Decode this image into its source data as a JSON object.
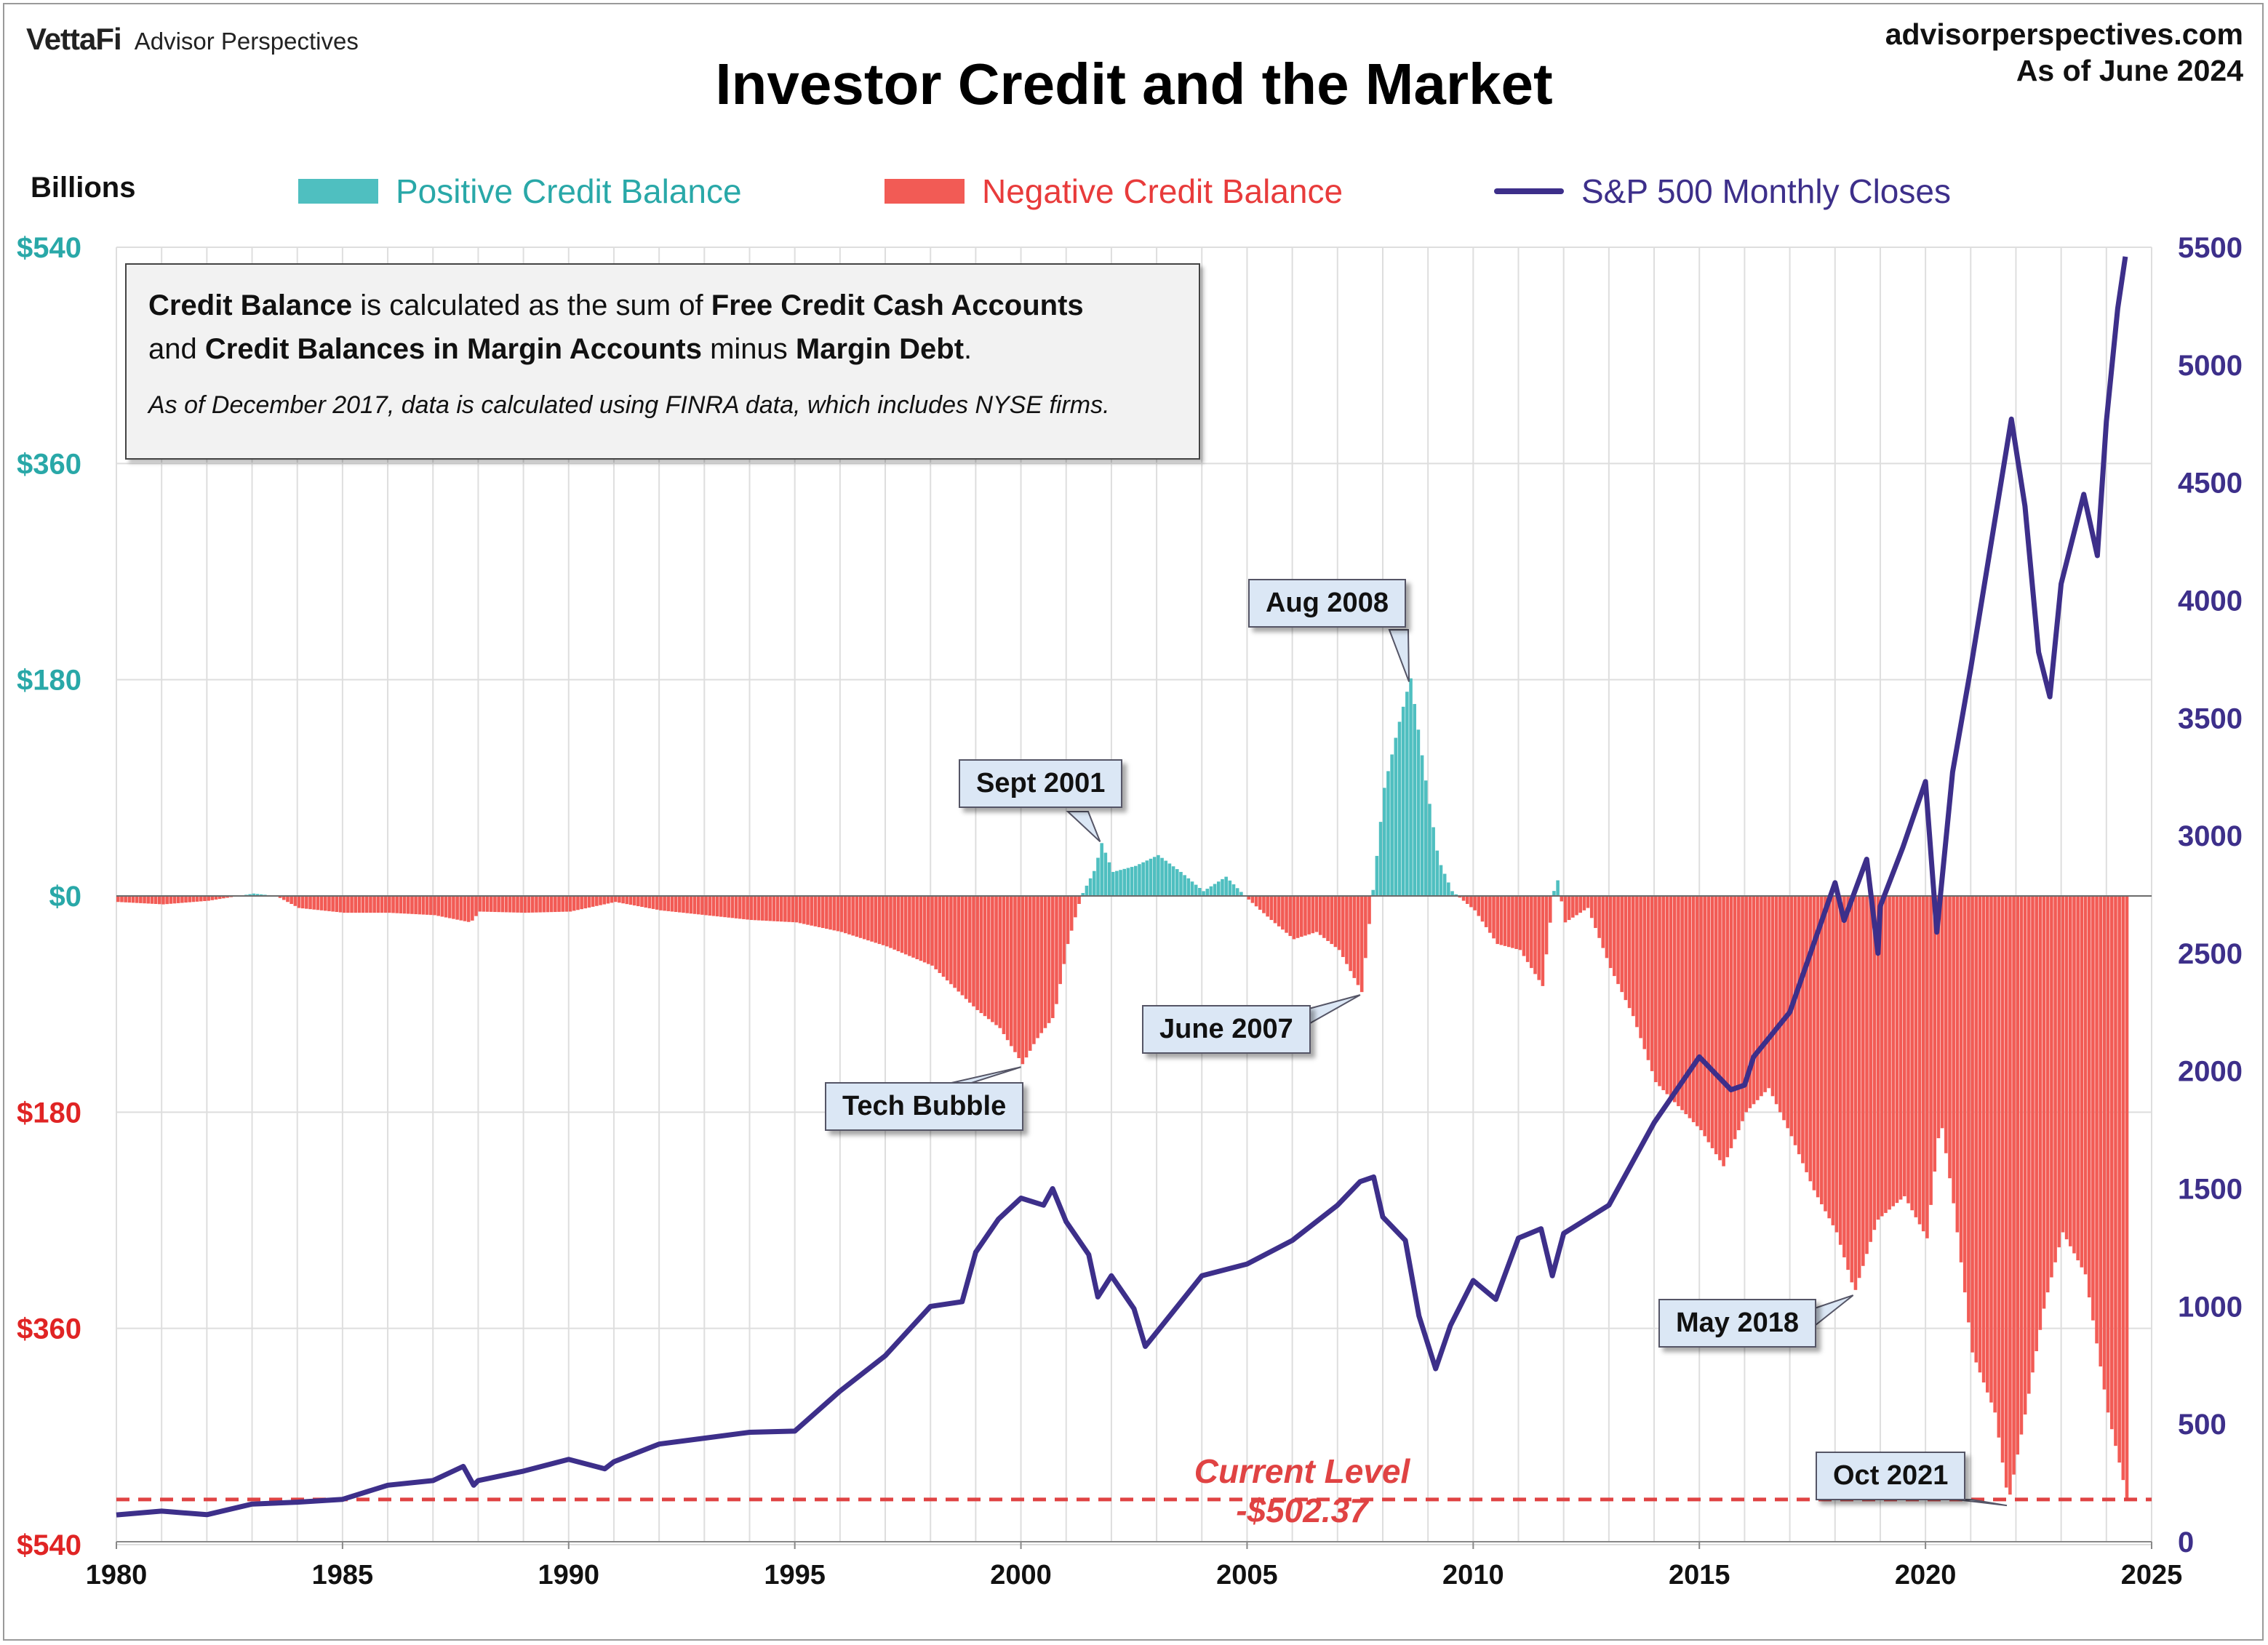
{
  "header": {
    "brand": "VettaFi",
    "brand_sub": "Advisor Perspectives",
    "website": "advisorperspectives.com",
    "as_of": "As of June 2024"
  },
  "chart_data": {
    "type": "bar",
    "title": "Investor Credit and the Market",
    "left_axis_title": "Billions",
    "legend": {
      "positive": "Positive Credit Balance",
      "negative": "Negative Credit Balance",
      "sp500": "S&P 500 Monthly Closes"
    },
    "legend_placement": "top",
    "grid": true,
    "colors": {
      "positive": "#4fbfc0",
      "negative": "#f25b55",
      "sp500": "#3d2f8a",
      "left_axis_positive": "#29a8a8",
      "left_axis_negative": "#e02424",
      "current_line": "#e04343"
    },
    "x_range": [
      1980,
      2025
    ],
    "x_ticks": [
      "1980",
      "1985",
      "1990",
      "1995",
      "2000",
      "2005",
      "2010",
      "2015",
      "2020",
      "2025"
    ],
    "y_left_range": [
      -540,
      540
    ],
    "y_left_ticks": [
      {
        "value": 540,
        "label": "$540"
      },
      {
        "value": 360,
        "label": "$360"
      },
      {
        "value": 180,
        "label": "$180"
      },
      {
        "value": 0,
        "label": "$0"
      },
      {
        "value": -180,
        "label": "$180"
      },
      {
        "value": -360,
        "label": "$360"
      },
      {
        "value": -540,
        "label": "$540"
      }
    ],
    "y_right_range": [
      0,
      5500
    ],
    "y_right_ticks": [
      "0",
      "500",
      "1000",
      "1500",
      "2000",
      "2500",
      "3000",
      "3500",
      "4000",
      "4500",
      "5000",
      "5500"
    ],
    "credit_balance_series": {
      "name": "Credit Balance",
      "points": [
        [
          1980.0,
          -5
        ],
        [
          1981.0,
          -7
        ],
        [
          1982.0,
          -4
        ],
        [
          1983.0,
          2
        ],
        [
          1983.5,
          0
        ],
        [
          1984.0,
          -10
        ],
        [
          1985.0,
          -14
        ],
        [
          1986.0,
          -14
        ],
        [
          1987.0,
          -16
        ],
        [
          1987.8,
          -22
        ],
        [
          1988.0,
          -13
        ],
        [
          1989.0,
          -14
        ],
        [
          1990.0,
          -13
        ],
        [
          1991.0,
          -5
        ],
        [
          1992.0,
          -12
        ],
        [
          1993.0,
          -16
        ],
        [
          1994.0,
          -20
        ],
        [
          1995.0,
          -22
        ],
        [
          1996.0,
          -30
        ],
        [
          1997.0,
          -42
        ],
        [
          1998.0,
          -58
        ],
        [
          1999.0,
          -95
        ],
        [
          1999.5,
          -110
        ],
        [
          2000.0,
          -140
        ],
        [
          2000.3,
          -120
        ],
        [
          2000.7,
          -100
        ],
        [
          2001.0,
          -40
        ],
        [
          2001.3,
          0
        ],
        [
          2001.6,
          22
        ],
        [
          2001.75,
          44
        ],
        [
          2002.0,
          20
        ],
        [
          2002.5,
          25
        ],
        [
          2003.0,
          34
        ],
        [
          2003.5,
          20
        ],
        [
          2004.0,
          4
        ],
        [
          2004.5,
          16
        ],
        [
          2005.0,
          -3
        ],
        [
          2005.5,
          -20
        ],
        [
          2006.0,
          -36
        ],
        [
          2006.5,
          -30
        ],
        [
          2007.0,
          -45
        ],
        [
          2007.5,
          -80
        ],
        [
          2007.75,
          5
        ],
        [
          2008.0,
          90
        ],
        [
          2008.3,
          140
        ],
        [
          2008.58,
          182
        ],
        [
          2008.9,
          100
        ],
        [
          2009.2,
          30
        ],
        [
          2009.5,
          4
        ],
        [
          2010.0,
          -12
        ],
        [
          2010.5,
          -40
        ],
        [
          2011.0,
          -45
        ],
        [
          2011.5,
          -75
        ],
        [
          2011.8,
          20
        ],
        [
          2012.0,
          -22
        ],
        [
          2012.5,
          -10
        ],
        [
          2013.0,
          -60
        ],
        [
          2013.5,
          -100
        ],
        [
          2014.0,
          -155
        ],
        [
          2014.5,
          -175
        ],
        [
          2015.0,
          -195
        ],
        [
          2015.5,
          -225
        ],
        [
          2016.0,
          -180
        ],
        [
          2016.5,
          -160
        ],
        [
          2017.0,
          -200
        ],
        [
          2017.5,
          -245
        ],
        [
          2018.0,
          -280
        ],
        [
          2018.4,
          -330
        ],
        [
          2018.9,
          -270
        ],
        [
          2019.5,
          -250
        ],
        [
          2020.0,
          -285
        ],
        [
          2020.3,
          -185
        ],
        [
          2020.6,
          -260
        ],
        [
          2021.0,
          -380
        ],
        [
          2021.5,
          -430
        ],
        [
          2021.8,
          -505
        ],
        [
          2022.2,
          -425
        ],
        [
          2022.6,
          -340
        ],
        [
          2023.0,
          -280
        ],
        [
          2023.5,
          -315
        ],
        [
          2024.0,
          -430
        ],
        [
          2024.3,
          -480
        ],
        [
          2024.42,
          -502.37
        ]
      ]
    },
    "sp500_series": {
      "name": "S&P 500 Monthly Closes",
      "points": [
        [
          1980,
          114
        ],
        [
          1981,
          130
        ],
        [
          1982,
          115
        ],
        [
          1983,
          160
        ],
        [
          1984,
          168
        ],
        [
          1985,
          180
        ],
        [
          1986,
          240
        ],
        [
          1987,
          260
        ],
        [
          1987.67,
          320
        ],
        [
          1987.9,
          240
        ],
        [
          1988,
          260
        ],
        [
          1989,
          300
        ],
        [
          1990,
          350
        ],
        [
          1990.8,
          310
        ],
        [
          1991,
          340
        ],
        [
          1992,
          415
        ],
        [
          1993,
          440
        ],
        [
          1994,
          465
        ],
        [
          1995,
          470
        ],
        [
          1996,
          640
        ],
        [
          1997,
          790
        ],
        [
          1998,
          1000
        ],
        [
          1998.7,
          1020
        ],
        [
          1999,
          1230
        ],
        [
          1999.5,
          1370
        ],
        [
          2000,
          1460
        ],
        [
          2000.5,
          1430
        ],
        [
          2000.7,
          1500
        ],
        [
          2001,
          1360
        ],
        [
          2001.5,
          1220
        ],
        [
          2001.7,
          1040
        ],
        [
          2002,
          1130
        ],
        [
          2002.5,
          990
        ],
        [
          2002.75,
          830
        ],
        [
          2003,
          890
        ],
        [
          2004,
          1130
        ],
        [
          2005,
          1180
        ],
        [
          2006,
          1280
        ],
        [
          2007,
          1430
        ],
        [
          2007.5,
          1530
        ],
        [
          2007.8,
          1550
        ],
        [
          2008,
          1380
        ],
        [
          2008.5,
          1280
        ],
        [
          2008.8,
          960
        ],
        [
          2009.17,
          735
        ],
        [
          2009.5,
          920
        ],
        [
          2010,
          1110
        ],
        [
          2010.5,
          1030
        ],
        [
          2011,
          1290
        ],
        [
          2011.5,
          1330
        ],
        [
          2011.75,
          1130
        ],
        [
          2012,
          1310
        ],
        [
          2013,
          1430
        ],
        [
          2014,
          1780
        ],
        [
          2015,
          2060
        ],
        [
          2015.7,
          1920
        ],
        [
          2016,
          1940
        ],
        [
          2016.2,
          2060
        ],
        [
          2017,
          2250
        ],
        [
          2018,
          2800
        ],
        [
          2018.2,
          2640
        ],
        [
          2018.7,
          2900
        ],
        [
          2018.95,
          2500
        ],
        [
          2019,
          2700
        ],
        [
          2019.5,
          2950
        ],
        [
          2020,
          3230
        ],
        [
          2020.25,
          2590
        ],
        [
          2020.6,
          3270
        ],
        [
          2021,
          3710
        ],
        [
          2021.5,
          4300
        ],
        [
          2021.9,
          4770
        ],
        [
          2022.2,
          4400
        ],
        [
          2022.5,
          3780
        ],
        [
          2022.75,
          3590
        ],
        [
          2023,
          4070
        ],
        [
          2023.5,
          4450
        ],
        [
          2023.8,
          4190
        ],
        [
          2024,
          4760
        ],
        [
          2024.25,
          5240
        ],
        [
          2024.42,
          5460
        ]
      ]
    },
    "current_level": {
      "value": -502.37,
      "label_line1": "Current Level",
      "label_line2": "-$502.37"
    },
    "annotations": [
      {
        "text": "Aug 2008"
      },
      {
        "text": "Sept 2001"
      },
      {
        "text": "June 2007"
      },
      {
        "text": "Tech Bubble"
      },
      {
        "text": "May 2018"
      },
      {
        "text": "Oct 2021"
      }
    ],
    "note": {
      "line1_b1": "Credit Balance",
      "line1_t1": " is calculated as the sum of ",
      "line1_b2": "Free Credit Cash Accounts",
      "line2_t0": "and ",
      "line2_b1": "Credit Balances in Margin Accounts",
      "line2_t1": " minus ",
      "line2_b2": "Margin Debt",
      "line2_t2": ".",
      "line3": "As of December 2017, data is calculated using FINRA data, which includes NYSE firms."
    }
  }
}
